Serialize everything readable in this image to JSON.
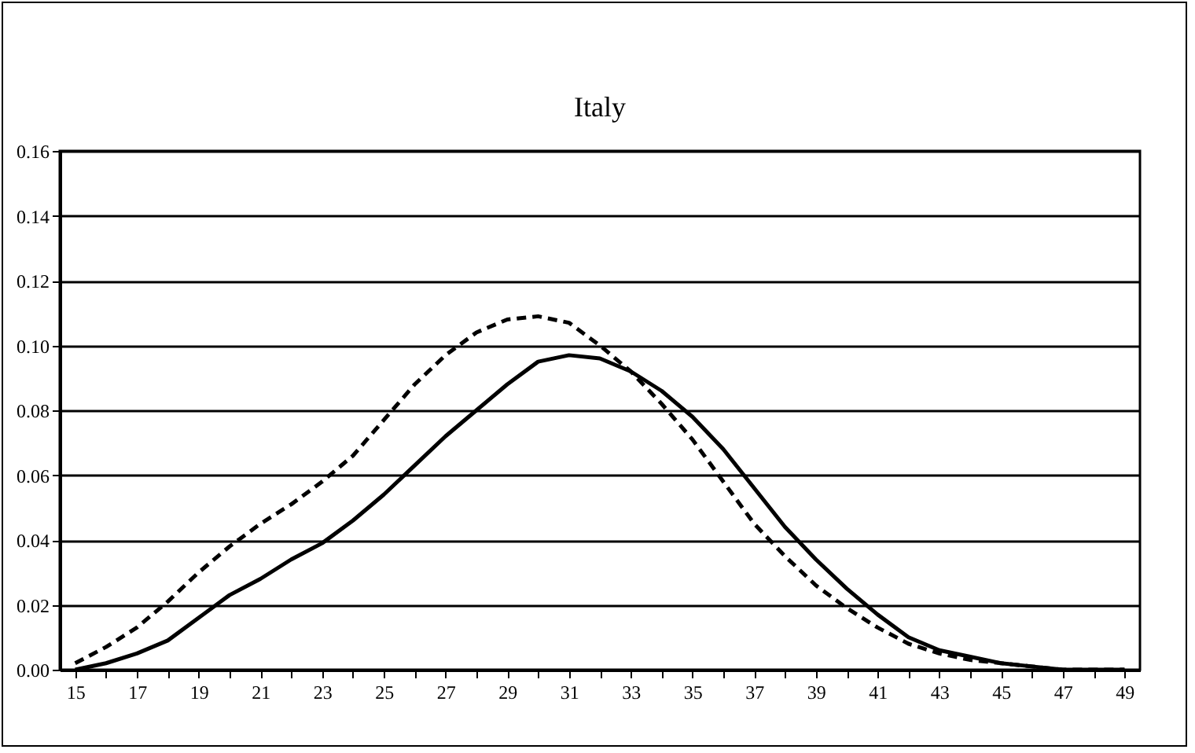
{
  "chart_data": {
    "type": "line",
    "title": "Italy",
    "categories": [
      "15",
      null,
      "17",
      null,
      "19",
      null,
      "21",
      null,
      "23",
      null,
      "25",
      null,
      "27",
      null,
      "29",
      null,
      "31",
      null,
      "33",
      null,
      "35",
      null,
      "37",
      null,
      "39",
      null,
      "41",
      null,
      "43",
      null,
      "45",
      null,
      "47",
      null,
      "49"
    ],
    "series": [
      {
        "color": "#000000",
        "line_style": "solid",
        "values": [
          0.0,
          0.002,
          0.005,
          0.009,
          0.016,
          0.023,
          0.028,
          0.034,
          0.039,
          0.046,
          0.054,
          0.063,
          0.072,
          0.08,
          0.088,
          0.095,
          0.097,
          0.096,
          0.092,
          0.086,
          0.078,
          0.068,
          0.056,
          0.044,
          0.034,
          0.025,
          0.017,
          0.01,
          0.006,
          0.004,
          0.002,
          0.001,
          0.0,
          0.0,
          0.0
        ]
      },
      {
        "color": "#000000",
        "line_style": "dashed",
        "values": [
          0.002,
          0.007,
          0.013,
          0.021,
          0.03,
          0.038,
          0.045,
          0.051,
          0.058,
          0.066,
          0.077,
          0.088,
          0.097,
          0.104,
          0.108,
          0.109,
          0.107,
          0.1,
          0.092,
          0.082,
          0.071,
          0.058,
          0.045,
          0.035,
          0.026,
          0.019,
          0.013,
          0.008,
          0.005,
          0.003,
          0.002,
          0.001,
          0.0,
          0.0,
          0.0
        ]
      }
    ],
    "ylim": [
      0,
      0.16
    ],
    "yticks": [
      {
        "value": 0,
        "label": "0.00"
      },
      {
        "value": 0.02,
        "label": "0.02"
      },
      {
        "value": 0.04,
        "label": "0.04"
      },
      {
        "value": 0.06,
        "label": "0.06"
      },
      {
        "value": 0.08,
        "label": "0.08"
      },
      {
        "value": 0.1,
        "label": "0.10"
      },
      {
        "value": 0.12,
        "label": "0.12"
      },
      {
        "value": 0.14,
        "label": "0.14"
      },
      {
        "value": 0.16,
        "label": "0.16"
      }
    ],
    "grid": "y",
    "marker": "none"
  }
}
